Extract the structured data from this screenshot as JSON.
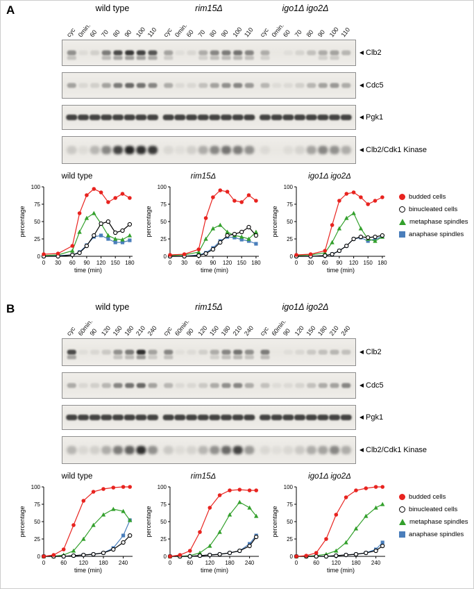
{
  "figure": {
    "background": "#ffffff",
    "border_color": "#cccccc"
  },
  "panels": [
    {
      "label": "A",
      "genotypes": [
        "wild type",
        "rim15Δ",
        "igo1Δ igo2Δ"
      ],
      "lane_labels": [
        "cyc",
        "0min.",
        "60",
        "70",
        "80",
        "90",
        "100",
        "110"
      ],
      "blots": [
        {
          "label": "Clb2",
          "h": 38,
          "band_w": 13,
          "band_h": 7,
          "blur": "f1",
          "doublet": true,
          "bands": [
            0.45,
            0.05,
            0.12,
            0.55,
            0.8,
            0.9,
            0.85,
            0.75,
            0.35,
            0.04,
            0.08,
            0.3,
            0.5,
            0.55,
            0.6,
            0.5,
            0.3,
            0.02,
            0.04,
            0.1,
            0.2,
            0.3,
            0.35,
            0.25
          ]
        },
        {
          "label": "Cdc5",
          "h": 38,
          "band_w": 13,
          "band_h": 7,
          "blur": "f1",
          "doublet": false,
          "bands": [
            0.35,
            0.08,
            0.12,
            0.35,
            0.55,
            0.65,
            0.6,
            0.5,
            0.3,
            0.06,
            0.08,
            0.2,
            0.35,
            0.45,
            0.5,
            0.4,
            0.25,
            0.05,
            0.06,
            0.12,
            0.25,
            0.35,
            0.4,
            0.3
          ]
        },
        {
          "label": "Pgk1",
          "h": 36,
          "band_w": 16,
          "band_h": 8,
          "blur": "f1",
          "doublet": false,
          "bands": [
            0.85,
            0.85,
            0.85,
            0.85,
            0.85,
            0.85,
            0.85,
            0.85,
            0.85,
            0.85,
            0.85,
            0.85,
            0.85,
            0.85,
            0.85,
            0.85,
            0.85,
            0.85,
            0.85,
            0.85,
            0.85,
            0.85,
            0.85,
            0.85
          ]
        },
        {
          "label": "Clb2/Cdk1 Kinase",
          "h": 40,
          "band_w": 14,
          "band_h": 12,
          "blur": "f2",
          "doublet": false,
          "bands": [
            0.15,
            0.05,
            0.25,
            0.5,
            0.85,
            1.0,
            0.95,
            0.9,
            0.08,
            0.04,
            0.12,
            0.3,
            0.5,
            0.6,
            0.55,
            0.45,
            0.06,
            0.02,
            0.05,
            0.1,
            0.35,
            0.5,
            0.45,
            0.3
          ]
        }
      ]
    },
    {
      "label": "B",
      "genotypes": [
        "wild type",
        "rim15Δ",
        "igo1Δ igo2Δ"
      ],
      "lane_labels": [
        "cyc",
        "60min.",
        "90",
        "120",
        "150",
        "180",
        "210",
        "240"
      ],
      "blots": [
        {
          "label": "Clb2",
          "h": 40,
          "band_w": 13,
          "band_h": 7,
          "blur": "f1",
          "doublet": true,
          "bands": [
            0.8,
            0.04,
            0.08,
            0.15,
            0.45,
            0.55,
            0.95,
            0.35,
            0.5,
            0.03,
            0.05,
            0.12,
            0.3,
            0.5,
            0.6,
            0.45,
            0.55,
            0.02,
            0.04,
            0.08,
            0.15,
            0.2,
            0.25,
            0.2
          ]
        },
        {
          "label": "Cdc5",
          "h": 38,
          "band_w": 13,
          "band_h": 7,
          "blur": "f1",
          "doublet": false,
          "bands": [
            0.3,
            0.08,
            0.12,
            0.25,
            0.5,
            0.6,
            0.65,
            0.35,
            0.25,
            0.06,
            0.08,
            0.15,
            0.3,
            0.45,
            0.5,
            0.3,
            0.2,
            0.05,
            0.06,
            0.1,
            0.2,
            0.3,
            0.35,
            0.5
          ]
        },
        {
          "label": "Pgk1",
          "h": 36,
          "band_w": 16,
          "band_h": 8,
          "blur": "f1",
          "doublet": false,
          "bands": [
            0.85,
            0.85,
            0.85,
            0.85,
            0.85,
            0.85,
            0.85,
            0.85,
            0.85,
            0.85,
            0.85,
            0.85,
            0.85,
            0.85,
            0.85,
            0.85,
            0.85,
            0.85,
            0.85,
            0.85,
            0.85,
            0.85,
            0.85,
            0.85
          ]
        },
        {
          "label": "Clb2/Cdk1 Kinase",
          "h": 40,
          "band_w": 14,
          "band_h": 12,
          "blur": "f2",
          "doublet": false,
          "bands": [
            0.25,
            0.08,
            0.12,
            0.3,
            0.55,
            0.7,
            0.95,
            0.45,
            0.15,
            0.05,
            0.1,
            0.25,
            0.45,
            0.65,
            0.85,
            0.4,
            0.08,
            0.04,
            0.08,
            0.15,
            0.3,
            0.35,
            0.5,
            0.3
          ]
        }
      ]
    }
  ],
  "legend": {
    "entries": [
      {
        "label": "budded cells",
        "marker": "circle-filled",
        "color": "#e8231f"
      },
      {
        "label": "binucleated cells",
        "marker": "circle-open",
        "color": "#000000"
      },
      {
        "label": "metaphase spindles",
        "marker": "triangle-filled",
        "color": "#33a02c"
      },
      {
        "label": "anaphase spindles",
        "marker": "square-filled",
        "color": "#4a7ebb"
      }
    ]
  },
  "series_styles": {
    "budded cells": {
      "color": "#e8231f",
      "marker": "circle-filled"
    },
    "binucleated cells": {
      "color": "#000000",
      "marker": "circle-open"
    },
    "metaphase spindles": {
      "color": "#33a02c",
      "marker": "triangle-filled"
    },
    "anaphase spindles": {
      "color": "#4a7ebb",
      "marker": "square-filled"
    }
  },
  "chart_data": [
    {
      "panel": "A",
      "title": "wild type",
      "type": "line",
      "xlabel": "time (min)",
      "ylabel": "percentage",
      "xlim": [
        0,
        186
      ],
      "ylim": [
        0,
        100
      ],
      "xticks": [
        0,
        30,
        60,
        90,
        120,
        150,
        180
      ],
      "yticks": [
        0,
        25,
        50,
        75,
        100
      ],
      "x": [
        0,
        30,
        60,
        75,
        90,
        105,
        120,
        135,
        150,
        165,
        180
      ],
      "series": [
        {
          "name": "budded cells",
          "values": [
            3,
            4,
            15,
            62,
            88,
            97,
            92,
            78,
            84,
            90,
            84
          ]
        },
        {
          "name": "binucleated cells",
          "values": [
            0,
            0,
            2,
            5,
            15,
            30,
            47,
            50,
            34,
            37,
            46
          ]
        },
        {
          "name": "metaphase spindles",
          "values": [
            1,
            2,
            8,
            35,
            55,
            62,
            47,
            30,
            25,
            24,
            30
          ]
        },
        {
          "name": "anaphase spindles",
          "values": [
            0,
            1,
            2,
            6,
            16,
            28,
            30,
            25,
            20,
            20,
            23
          ]
        }
      ]
    },
    {
      "panel": "A",
      "title": "rim15Δ",
      "type": "line",
      "xlabel": "time (min)",
      "ylabel": "percentage",
      "xlim": [
        0,
        186
      ],
      "ylim": [
        0,
        100
      ],
      "xticks": [
        0,
        30,
        60,
        90,
        120,
        150,
        180
      ],
      "yticks": [
        0,
        25,
        50,
        75,
        100
      ],
      "x": [
        0,
        30,
        60,
        75,
        90,
        105,
        120,
        135,
        150,
        165,
        180
      ],
      "series": [
        {
          "name": "budded cells",
          "values": [
            2,
            3,
            10,
            55,
            85,
            95,
            93,
            80,
            78,
            88,
            80
          ]
        },
        {
          "name": "binucleated cells",
          "values": [
            0,
            0,
            1,
            4,
            10,
            20,
            30,
            32,
            35,
            42,
            30
          ]
        },
        {
          "name": "metaphase spindles",
          "values": [
            1,
            2,
            6,
            25,
            40,
            45,
            35,
            30,
            28,
            25,
            35
          ]
        },
        {
          "name": "anaphase spindles",
          "values": [
            0,
            0,
            2,
            5,
            12,
            22,
            28,
            27,
            24,
            22,
            18
          ]
        }
      ]
    },
    {
      "panel": "A",
      "title": "igo1Δ igo2Δ",
      "type": "line",
      "xlabel": "time (min)",
      "ylabel": "percentage",
      "xlim": [
        0,
        186
      ],
      "ylim": [
        0,
        100
      ],
      "xticks": [
        0,
        30,
        60,
        90,
        120,
        150,
        180
      ],
      "yticks": [
        0,
        25,
        50,
        75,
        100
      ],
      "x": [
        0,
        30,
        60,
        75,
        90,
        105,
        120,
        135,
        150,
        165,
        180
      ],
      "series": [
        {
          "name": "budded cells",
          "values": [
            2,
            3,
            8,
            45,
            80,
            90,
            92,
            85,
            75,
            80,
            85
          ]
        },
        {
          "name": "binucleated cells",
          "values": [
            0,
            0,
            1,
            3,
            8,
            15,
            25,
            28,
            27,
            28,
            30
          ]
        },
        {
          "name": "metaphase spindles",
          "values": [
            1,
            2,
            5,
            20,
            40,
            55,
            62,
            40,
            25,
            22,
            28
          ]
        },
        {
          "name": "anaphase spindles",
          "values": [
            0,
            0,
            1,
            3,
            8,
            15,
            25,
            27,
            22,
            25,
            28
          ]
        }
      ]
    },
    {
      "panel": "B",
      "title": "wild type",
      "type": "line",
      "xlabel": "time (min)",
      "ylabel": "percentage",
      "xlim": [
        0,
        268
      ],
      "ylim": [
        0,
        100
      ],
      "xticks": [
        0,
        60,
        120,
        180,
        240
      ],
      "yticks": [
        0,
        25,
        50,
        75,
        100
      ],
      "x": [
        0,
        30,
        60,
        90,
        120,
        150,
        180,
        210,
        240,
        260
      ],
      "series": [
        {
          "name": "budded cells",
          "values": [
            0,
            2,
            10,
            45,
            80,
            93,
            97,
            99,
            100,
            100
          ]
        },
        {
          "name": "binucleated cells",
          "values": [
            0,
            0,
            0,
            1,
            2,
            3,
            5,
            10,
            20,
            30
          ]
        },
        {
          "name": "metaphase spindles",
          "values": [
            0,
            0,
            2,
            8,
            25,
            45,
            60,
            68,
            65,
            52
          ]
        },
        {
          "name": "anaphase spindles",
          "values": [
            0,
            0,
            0,
            1,
            2,
            3,
            5,
            12,
            30,
            52
          ]
        }
      ]
    },
    {
      "panel": "B",
      "title": "rim15Δ",
      "type": "line",
      "xlabel": "time (min)",
      "ylabel": "percentage",
      "xlim": [
        0,
        268
      ],
      "ylim": [
        0,
        100
      ],
      "xticks": [
        0,
        60,
        120,
        180,
        240
      ],
      "yticks": [
        0,
        25,
        50,
        75,
        100
      ],
      "x": [
        0,
        30,
        60,
        90,
        120,
        150,
        180,
        210,
        240,
        260
      ],
      "series": [
        {
          "name": "budded cells",
          "values": [
            0,
            2,
            8,
            35,
            70,
            88,
            95,
            96,
            95,
            95
          ]
        },
        {
          "name": "binucleated cells",
          "values": [
            0,
            0,
            0,
            1,
            2,
            3,
            5,
            8,
            15,
            28
          ]
        },
        {
          "name": "metaphase spindles",
          "values": [
            0,
            0,
            1,
            5,
            15,
            35,
            60,
            78,
            70,
            58
          ]
        },
        {
          "name": "anaphase spindles",
          "values": [
            0,
            0,
            0,
            1,
            2,
            3,
            5,
            8,
            18,
            30
          ]
        }
      ]
    },
    {
      "panel": "B",
      "title": "igo1Δ igo2Δ",
      "type": "line",
      "xlabel": "time (min)",
      "ylabel": "percentage",
      "xlim": [
        0,
        268
      ],
      "ylim": [
        0,
        100
      ],
      "xticks": [
        0,
        60,
        120,
        180,
        240
      ],
      "yticks": [
        0,
        25,
        50,
        75,
        100
      ],
      "x": [
        0,
        30,
        60,
        90,
        120,
        150,
        180,
        210,
        240,
        260
      ],
      "series": [
        {
          "name": "budded cells",
          "values": [
            0,
            1,
            5,
            25,
            60,
            85,
            95,
            98,
            100,
            100
          ]
        },
        {
          "name": "binucleated cells",
          "values": [
            0,
            0,
            0,
            0,
            1,
            2,
            3,
            5,
            8,
            15
          ]
        },
        {
          "name": "metaphase spindles",
          "values": [
            0,
            0,
            1,
            3,
            8,
            20,
            40,
            58,
            70,
            75
          ]
        },
        {
          "name": "anaphase spindles",
          "values": [
            0,
            0,
            0,
            0,
            1,
            2,
            3,
            5,
            10,
            20
          ]
        }
      ]
    }
  ]
}
